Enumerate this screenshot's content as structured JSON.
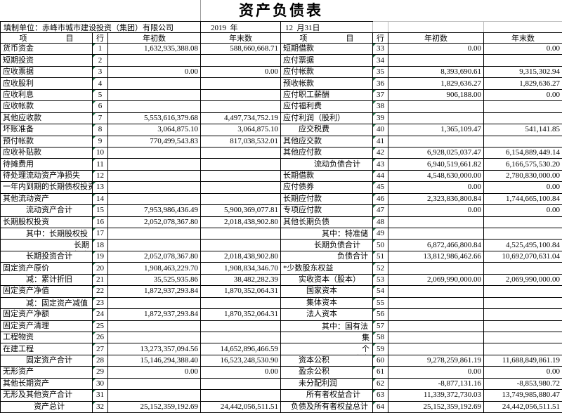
{
  "title": "资产负债表",
  "form": {
    "unit_label": "填制单位：赤峰市城市建设投资（集团）有限公司",
    "year": "2019  年",
    "month_day": "12  月31日"
  },
  "columns": {
    "item": "项　　　　　目",
    "row_no": "行\n次",
    "begin": "年初数",
    "end": "年末数"
  },
  "colors": {
    "border": "#000000",
    "light_gridline": "#bdbdbd",
    "error_triangle_green": "#1d7044",
    "background": "#ffffff"
  },
  "left_rows": [
    {
      "label": "货币资金",
      "num": "1",
      "begin": "1,632,935,388.08",
      "end": "588,660,668.71",
      "indent": 0
    },
    {
      "label": "短期投资",
      "num": "2",
      "begin": "",
      "end": "",
      "indent": 0
    },
    {
      "label": "应收票据",
      "num": "3",
      "begin": "0.00",
      "end": "0.00",
      "indent": 0
    },
    {
      "label": "应收股利",
      "num": "4",
      "begin": "",
      "end": "",
      "indent": 0
    },
    {
      "label": "应收利息",
      "num": "5",
      "begin": "",
      "end": "",
      "indent": 0
    },
    {
      "label": "应收帐款",
      "num": "6",
      "begin": "",
      "end": "",
      "indent": 0
    },
    {
      "label": "其他应收款",
      "num": "7",
      "begin": "5,553,616,379.68",
      "end": "4,497,734,752.19",
      "indent": 0
    },
    {
      "label": "坏账准备",
      "num": "8",
      "begin": "3,064,875.10",
      "end": "3,064,875.10",
      "indent": 0
    },
    {
      "label": "预付帐款",
      "num": "9",
      "begin": "770,499,543.83",
      "end": "817,038,532.01",
      "indent": 0
    },
    {
      "label": "应收补贴款",
      "num": "10",
      "begin": "",
      "end": "",
      "indent": 0
    },
    {
      "label": "待摊费用",
      "num": "11",
      "begin": "",
      "end": "",
      "indent": 0
    },
    {
      "label": "待处理流动资产净损失",
      "num": "12",
      "begin": "",
      "end": "",
      "indent": 0
    },
    {
      "label": "一年内到期的长期债权投资",
      "num": "13",
      "begin": "",
      "end": "",
      "indent": 0
    },
    {
      "label": "其他流动资产",
      "num": "14",
      "begin": "",
      "end": "",
      "indent": 0
    },
    {
      "label": "流动资产合计",
      "num": "15",
      "begin": "7,953,986,436.49",
      "end": "5,900,369,077.81",
      "indent": 3
    },
    {
      "label": "长期股权投资",
      "num": "16",
      "begin": "2,052,078,367.80",
      "end": "2,018,438,902.80",
      "indent": 0
    },
    {
      "label": "其中：长期股权投\n资",
      "num": "17",
      "begin": "",
      "end": "",
      "indent": 3
    },
    {
      "label": "长期\n债权投资",
      "num": "18",
      "begin": "",
      "end": "",
      "indent": 0,
      "align": "right"
    },
    {
      "label": "长期投资合计",
      "num": "19",
      "begin": "2,052,078,367.80",
      "end": "2,018,438,902.80",
      "indent": 3
    },
    {
      "label": "固定资产原价",
      "num": "20",
      "begin": "1,908,463,229.70",
      "end": "1,908,834,346.70",
      "indent": 0
    },
    {
      "label": "减：累计折旧",
      "num": "21",
      "begin": "35,525,935.86",
      "end": "38,482,282.39",
      "indent": 3
    },
    {
      "label": "固定资产净值",
      "num": "22",
      "begin": "1,872,937,293.84",
      "end": "1,870,352,064.31",
      "indent": 0
    },
    {
      "label": "减：固定资产减值\n准备",
      "num": "23",
      "begin": "",
      "end": "",
      "indent": 3
    },
    {
      "label": "固定资产净额",
      "num": "24",
      "begin": "1,872,937,293.84",
      "end": "1,870,352,064.31",
      "indent": 0
    },
    {
      "label": "固定资产清理",
      "num": "25",
      "begin": "",
      "end": "",
      "indent": 0
    },
    {
      "label": "工程物资",
      "num": "26",
      "begin": "",
      "end": "",
      "indent": 0
    },
    {
      "label": "在建工程",
      "num": "27",
      "begin": "13,273,357,094.56",
      "end": "14,652,896,466.59",
      "indent": 0
    },
    {
      "label": "固定资产合计",
      "num": "28",
      "begin": "15,146,294,388.40",
      "end": "16,523,248,530.90",
      "indent": 3
    },
    {
      "label": "无形资产",
      "num": "29",
      "begin": "0.00",
      "end": "0.00",
      "indent": 0
    },
    {
      "label": "其他长期资产",
      "num": "30",
      "begin": "",
      "end": "",
      "indent": 0
    },
    {
      "label": "无形及其他资产合计",
      "num": "31",
      "begin": "",
      "end": "",
      "indent": 0
    },
    {
      "label": "资产总计",
      "num": "32",
      "begin": "25,152,359,192.69",
      "end": "24,442,056,511.51",
      "indent": 4
    }
  ],
  "right_rows": [
    {
      "label": "短期借款",
      "num": "33",
      "begin": "0.00",
      "end": "0.00",
      "indent": 0
    },
    {
      "label": "应付票据",
      "num": "34",
      "begin": "",
      "end": "",
      "indent": 0
    },
    {
      "label": "应付帐款",
      "num": "35",
      "begin": "8,393,690.61",
      "end": "9,315,302.94",
      "indent": 0
    },
    {
      "label": "预收帐款",
      "num": "36",
      "begin": "1,829,636.27",
      "end": "1,829,636.27",
      "indent": 0
    },
    {
      "label": "应付职工薪酬",
      "num": "37",
      "begin": "906,188.00",
      "end": "0.00",
      "indent": 0
    },
    {
      "label": "应付福利费",
      "num": "38",
      "begin": "",
      "end": "",
      "indent": 0
    },
    {
      "label": "应付利润（股利）",
      "num": "39",
      "begin": "",
      "end": "",
      "indent": 0
    },
    {
      "label": "应交税费",
      "num": "40",
      "begin": "1,365,109.47",
      "end": "541,141.85",
      "indent": 2
    },
    {
      "label": "其他应交款",
      "num": "41",
      "begin": "",
      "end": "",
      "indent": 0
    },
    {
      "label": "其他应付款",
      "num": "42",
      "begin": "6,928,025,037.47",
      "end": "6,154,889,449.14",
      "indent": 0
    },
    {
      "label": "流动负债合计",
      "num": "43",
      "begin": "6,940,519,661.82",
      "end": "6,166,575,530.20",
      "indent": 4
    },
    {
      "label": "长期借款",
      "num": "44",
      "begin": "4,548,630,000.00",
      "end": "2,780,830,000.00",
      "indent": 0
    },
    {
      "label": "应付债券",
      "num": "45",
      "begin": "0.00",
      "end": "0.00",
      "indent": 0
    },
    {
      "label": "长期应付款",
      "num": "46",
      "begin": "2,323,836,800.84",
      "end": "1,744,665,100.84",
      "indent": 0
    },
    {
      "label": "专项应付款",
      "num": "47",
      "begin": "0.00",
      "end": "0.00",
      "indent": 0
    },
    {
      "label": "其他长期负债",
      "num": "48",
      "begin": "",
      "end": "",
      "indent": 0
    },
    {
      "label": "其中：特准储备\n资金",
      "num": "49",
      "begin": "",
      "end": "",
      "indent": 5
    },
    {
      "label": "长期负债合计",
      "num": "50",
      "begin": "6,872,466,800.84",
      "end": "4,525,495,100.84",
      "indent": 4
    },
    {
      "label": "负债合计",
      "num": "51",
      "begin": "13,812,986,462.66",
      "end": "10,692,070,631.04",
      "indent": 7
    },
    {
      "label": "*少数股东权益",
      "num": "52",
      "begin": "",
      "end": "",
      "indent": 0
    },
    {
      "label": "实收资本（股本）",
      "num": "53",
      "begin": "2,069,990,000.00",
      "end": "2,069,990,000.00",
      "indent": 2
    },
    {
      "label": "国家资本",
      "num": "54",
      "begin": "",
      "end": "",
      "indent": 3
    },
    {
      "label": "集体资本",
      "num": "55",
      "begin": "",
      "end": "",
      "indent": 3
    },
    {
      "label": "法人资本",
      "num": "56",
      "begin": "",
      "end": "",
      "indent": 3
    },
    {
      "label": "其中：国有法人\n资本",
      "num": "57",
      "begin": "",
      "end": "",
      "indent": 5
    },
    {
      "label": "集\n体法人资本",
      "num": "58",
      "begin": "",
      "end": "",
      "indent": 0,
      "align": "right"
    },
    {
      "label": "个\n人资本",
      "num": "59",
      "begin": "",
      "end": "",
      "indent": 0,
      "align": "right"
    },
    {
      "label": "资本公积",
      "num": "60",
      "begin": "9,278,259,861.19",
      "end": "11,688,849,861.19",
      "indent": 2
    },
    {
      "label": "盈余公积",
      "num": "61",
      "begin": "0.00",
      "end": "0.00",
      "indent": 2
    },
    {
      "label": "未分配利润",
      "num": "62",
      "begin": "-8,877,131.16",
      "end": "-8,853,980.72",
      "indent": 2
    },
    {
      "label": "所有者权益合计",
      "num": "63",
      "begin": "11,339,372,730.03",
      "end": "13,749,985,880.47",
      "indent": 3
    },
    {
      "label": "负债及所有者权益总计",
      "num": "64",
      "begin": "25,152,359,192.69",
      "end": "24,442,056,511.51",
      "indent": 1
    }
  ]
}
